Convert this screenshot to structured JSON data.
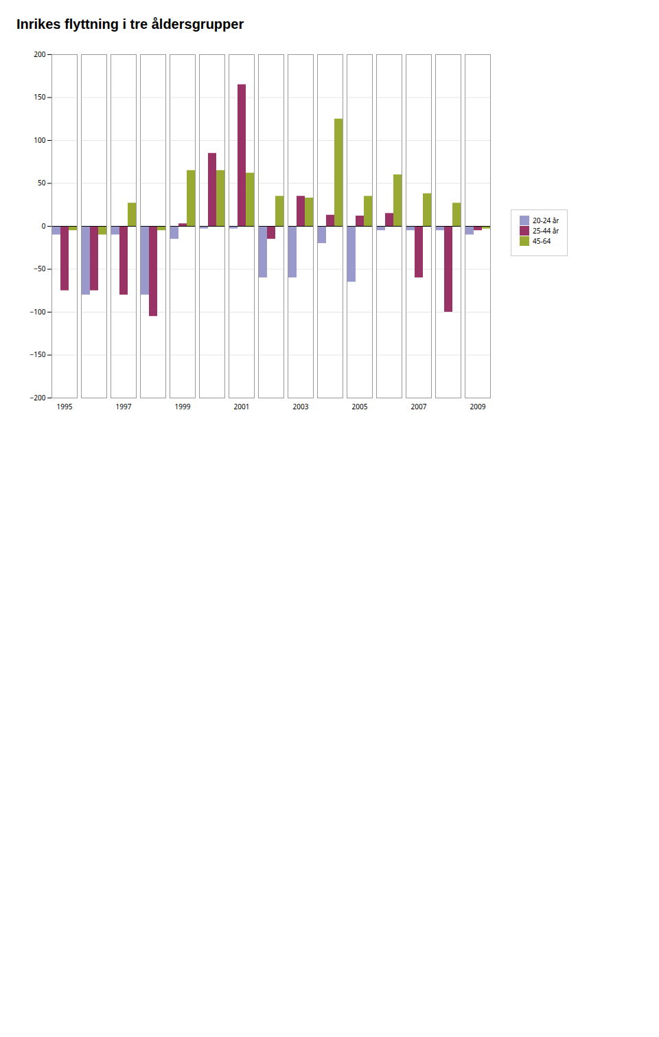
{
  "chart_data": {
    "type": "bar",
    "title": "Inrikes flyttning i tre åldersgrupper",
    "categories": [
      "1995",
      null,
      "1997",
      null,
      "1999",
      null,
      "2001",
      null,
      "2003",
      null,
      "2005",
      null,
      "2007",
      null,
      "2009"
    ],
    "series": [
      {
        "name": "20-24 år",
        "color": "#9999CC",
        "values": [
          -10,
          -80,
          -10,
          -80,
          -15,
          -3,
          -3,
          -60,
          -60,
          -20,
          -65,
          -5,
          -5,
          -5,
          -10
        ]
      },
      {
        "name": "25-44 år",
        "color": "#993366",
        "values": [
          -75,
          -75,
          -80,
          -105,
          3,
          85,
          165,
          -15,
          35,
          13,
          12,
          15,
          -60,
          -100,
          -5
        ]
      },
      {
        "name": "45-64",
        "color": "#99AA33",
        "values": [
          -5,
          -10,
          27,
          -5,
          65,
          65,
          62,
          35,
          33,
          125,
          35,
          60,
          38,
          27,
          -3
        ]
      }
    ],
    "ylim": [
      -200,
      200
    ],
    "yticks": [
      -200,
      -150,
      -100,
      -50,
      0,
      50,
      100,
      150,
      200
    ],
    "grid": true,
    "legend": "right"
  }
}
